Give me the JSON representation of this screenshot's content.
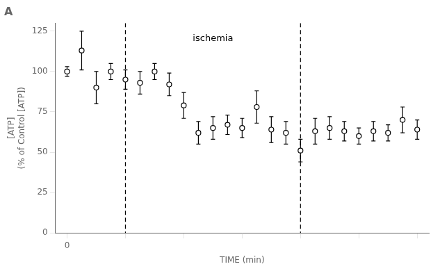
{
  "chart_data": {
    "type": "errorbar",
    "title": "A",
    "xlabel": "TIME (min)",
    "ylabel": "[ATP]\n(% of Control [ATP])",
    "x": [
      0,
      1,
      2,
      3,
      4,
      5,
      6,
      7,
      8,
      9,
      10,
      11,
      12,
      13,
      14,
      15,
      16,
      17,
      18,
      19,
      20,
      21,
      22,
      23,
      24
    ],
    "values": [
      100,
      113,
      90,
      100,
      95,
      93,
      100,
      92,
      79,
      62,
      65,
      67,
      65,
      78,
      64,
      62,
      51,
      63,
      65,
      63,
      60,
      63,
      62,
      70,
      64
    ],
    "yerr": [
      3,
      12,
      10,
      5,
      6,
      7,
      5,
      7,
      8,
      7,
      7,
      6,
      6,
      10,
      8,
      7,
      7,
      8,
      7,
      6,
      5,
      6,
      5,
      8,
      6
    ],
    "color": "#000000",
    "marker": "circle",
    "xlim": [
      -0.8,
      24.8
    ],
    "xticks": [
      {
        "value": 0,
        "label": "0"
      },
      {
        "value": 4,
        "label": null
      },
      {
        "value": 8,
        "label": null
      },
      {
        "value": 12,
        "label": null
      },
      {
        "value": 16,
        "label": null
      },
      {
        "value": 20,
        "label": null
      },
      {
        "value": 24,
        "label": null
      }
    ],
    "ylim": [
      0,
      130
    ],
    "yticks": [
      0,
      25,
      50,
      75,
      100,
      125
    ],
    "grid": false,
    "vlines": [
      {
        "x": 4,
        "color": "#000000",
        "line_style": "dashed"
      },
      {
        "x": 16,
        "color": "#000000",
        "line_style": "dashed"
      }
    ],
    "annotations": [
      {
        "text": "ischemia",
        "x": 10,
        "y": 123
      }
    ]
  }
}
